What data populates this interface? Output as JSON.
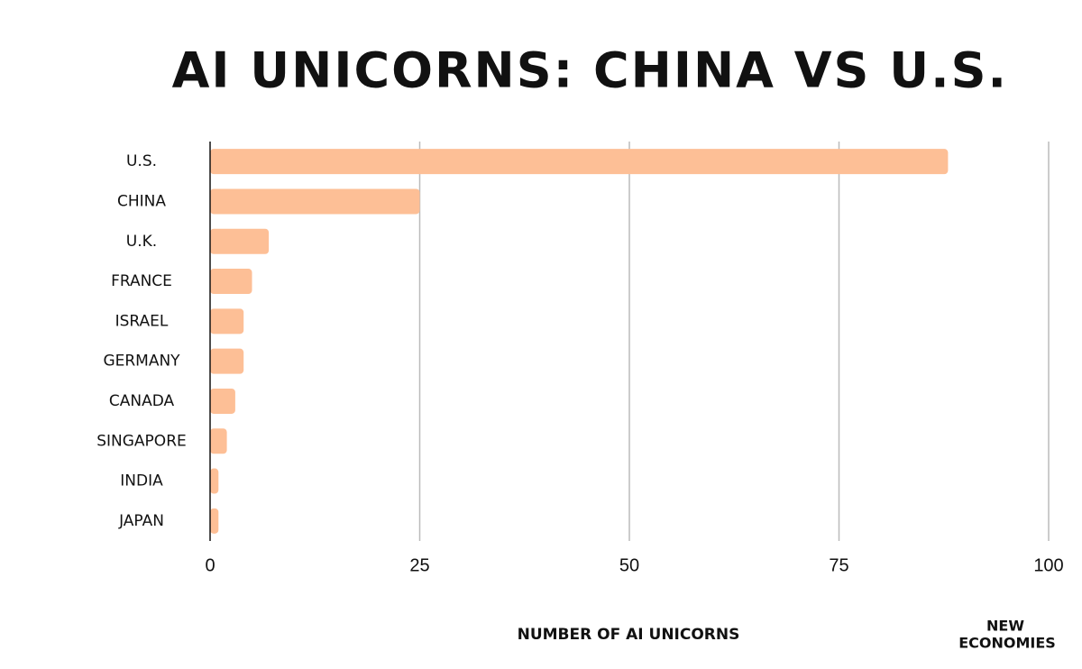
{
  "chart_data": {
    "type": "hbar",
    "title": "AI UNICORNS: CHINA VS U.S.",
    "categories": [
      "U.S.",
      "CHINA",
      "U.K.",
      "FRANCE",
      "ISRAEL",
      "GERMANY",
      "CANADA",
      "SINGAPORE",
      "INDIA",
      "JAPAN"
    ],
    "values": [
      88,
      25,
      7,
      5,
      4,
      4,
      3,
      2,
      1,
      1
    ],
    "color": "#fdbf96",
    "xlim": [
      0,
      100
    ],
    "xticks": [
      0,
      25,
      50,
      75,
      100
    ],
    "grid": true,
    "x_label": "NUMBER OF AI UNICORNS",
    "brand": [
      "NEW",
      "ECONOMIES"
    ]
  }
}
